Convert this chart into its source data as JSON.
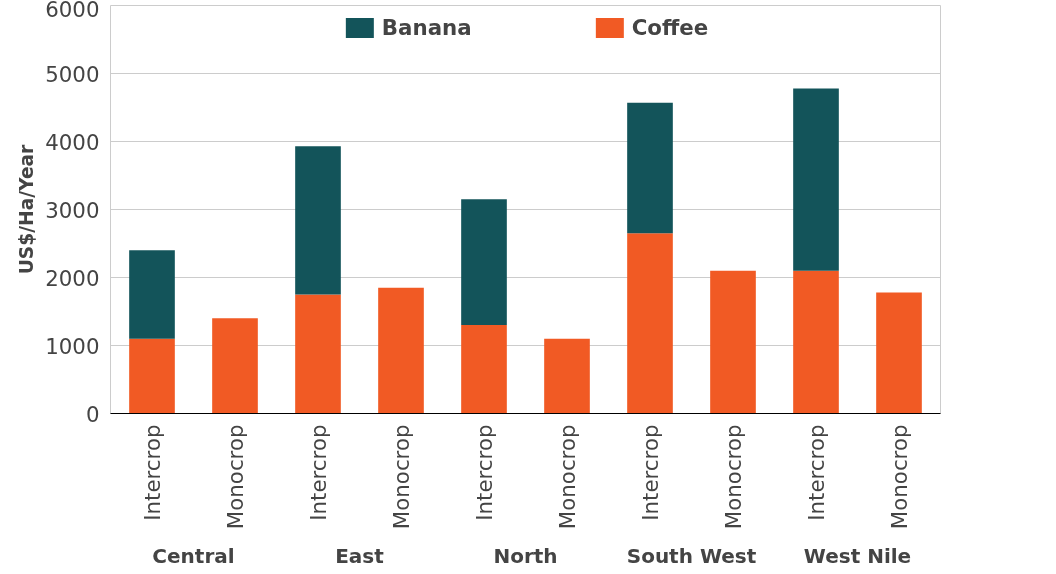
{
  "chart_data": {
    "type": "bar",
    "stacked": true,
    "ylabel": "US$/Ha/Year",
    "categories": [
      "Intercrop",
      "Monocrop",
      "Intercrop",
      "Monocrop",
      "Intercrop",
      "Monocrop",
      "Intercrop",
      "Monocrop",
      "Intercrop",
      "Monocrop"
    ],
    "series": [
      {
        "name": "Coffee",
        "color": "#f15a24",
        "values": [
          1100,
          1400,
          1750,
          1850,
          1300,
          1100,
          2650,
          2100,
          2100,
          1780
        ]
      },
      {
        "name": "Banana",
        "color": "#13545a",
        "values": [
          1300,
          null,
          2180,
          null,
          1850,
          null,
          1920,
          null,
          2680,
          null
        ]
      }
    ],
    "annotations": [
      "Central",
      "East",
      "North",
      "South West",
      "West Nile"
    ],
    "ylim": [
      0,
      6000
    ],
    "yticks": [
      0,
      1000,
      2000,
      3000,
      4000,
      5000,
      6000
    ],
    "grid": "y",
    "legend": "top"
  }
}
